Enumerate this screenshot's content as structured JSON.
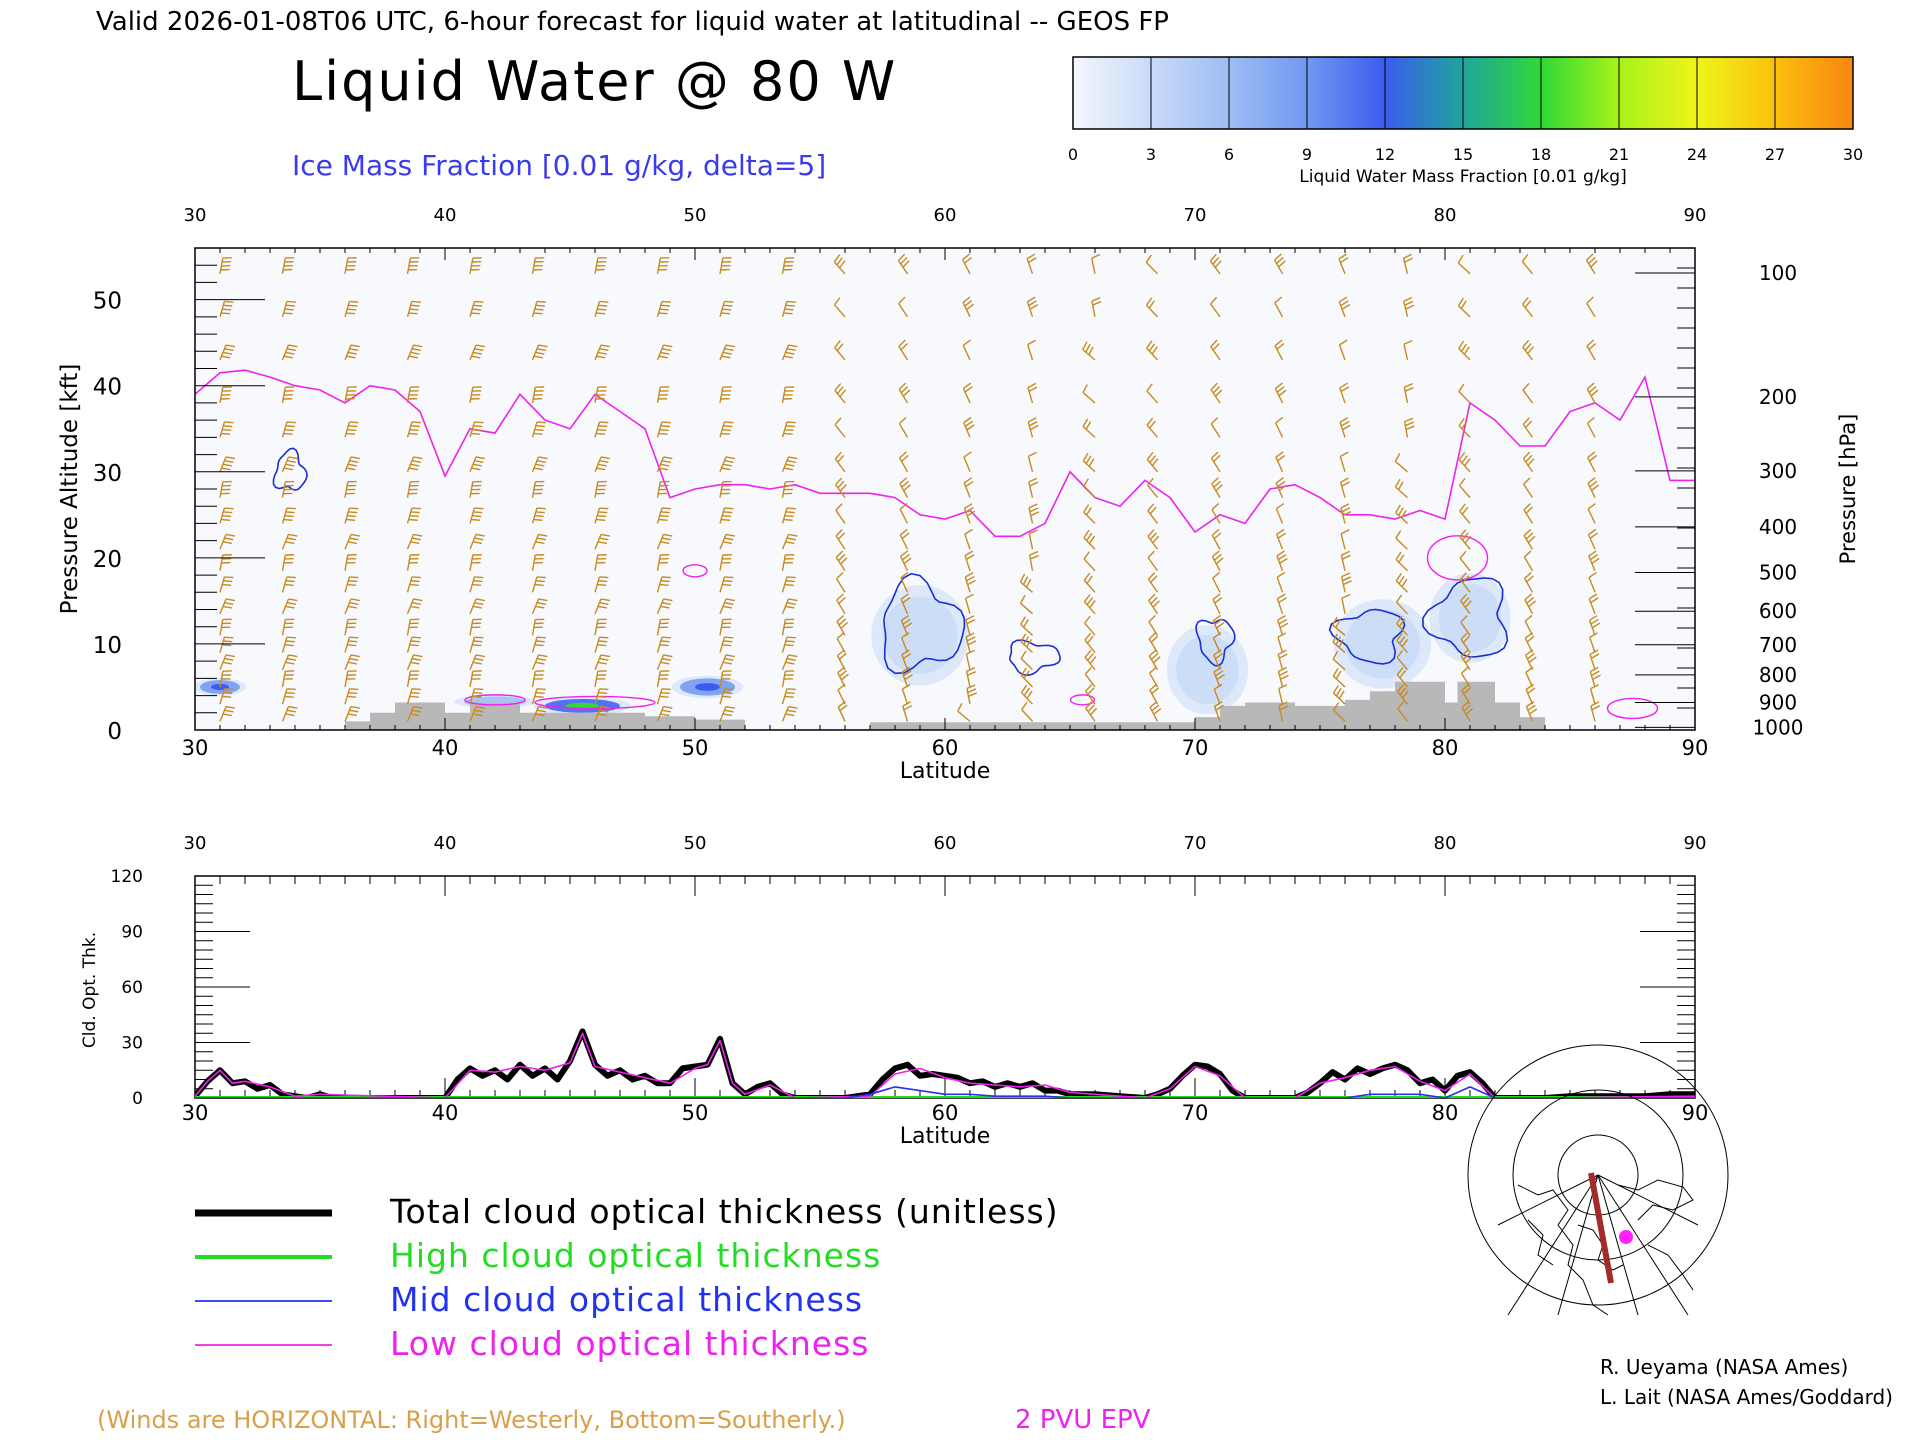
{
  "header": {
    "valid_line": "Valid 2026-01-08T06 UTC, 6-hour forecast for liquid water at latitudinal -- GEOS FP",
    "title": "Liquid Water @ 80 W",
    "subtitle": "Ice Mass Fraction [0.01 g/kg, delta=5]"
  },
  "colorbar": {
    "label": "Liquid Water Mass Fraction [0.01 g/kg]",
    "ticks": [
      "0",
      "3",
      "6",
      "9",
      "12",
      "15",
      "18",
      "21",
      "24",
      "27",
      "30"
    ],
    "colors": [
      "#f4f7fc",
      "#c9daf7",
      "#9ebdf4",
      "#7098f0",
      "#3b5ced",
      "#1fa59c",
      "#2fd838",
      "#a9f21a",
      "#eef51a",
      "#fbc00c",
      "#f78612"
    ],
    "end_color": "#f2280d"
  },
  "top_panel": {
    "xlabel": "Latitude",
    "ylabel_left": "Pressure Altitude [kft]",
    "ylabel_right": "Pressure [hPa]",
    "x_ticks": [
      "30",
      "40",
      "50",
      "60",
      "70",
      "80",
      "90"
    ],
    "y_left_ticks": [
      "0",
      "10",
      "20",
      "30",
      "40",
      "50"
    ],
    "y_right_ticks": [
      {
        "label": "100",
        "kft": 53.1
      },
      {
        "label": "200",
        "kft": 38.7
      },
      {
        "label": "300",
        "kft": 30.1
      },
      {
        "label": "400",
        "kft": 23.6
      },
      {
        "label": "500",
        "kft": 18.3
      },
      {
        "label": "600",
        "kft": 13.8
      },
      {
        "label": "700",
        "kft": 9.9
      },
      {
        "label": "800",
        "kft": 6.4
      },
      {
        "label": "900",
        "kft": 3.2
      },
      {
        "label": "1000",
        "kft": 0.3
      }
    ]
  },
  "bottom_panel": {
    "xlabel": "Latitude",
    "ylabel": "Cld. Opt. Thk.",
    "x_ticks": [
      "30",
      "40",
      "50",
      "60",
      "70",
      "80",
      "90"
    ],
    "y_ticks": [
      "0",
      "30",
      "60",
      "90",
      "120"
    ]
  },
  "legend": {
    "items": [
      {
        "label": "Total cloud optical thickness (unitless)",
        "color": "#000000"
      },
      {
        "label": "High cloud optical thickness",
        "color": "#22dd22"
      },
      {
        "label": "Mid cloud optical thickness",
        "color": "#2233ee"
      },
      {
        "label": "Low cloud optical thickness",
        "color": "#ee22ee"
      }
    ]
  },
  "footer": {
    "winds_note": "(Winds are HORIZONTAL: Right=Westerly, Bottom=Southerly.)",
    "epv_label": "2 PVU EPV",
    "credit_1": "R. Ueyama (NASA Ames)",
    "credit_2": "L. Lait (NASA Ames/Goddard)"
  },
  "colors": {
    "wind": "#c88a1e",
    "epv": "#ee22ee",
    "ice_contour": "#1a2fd0",
    "terrain": "#b8b8b8",
    "text": "#000000",
    "subtitle": "#3a3aee",
    "winds_note": "#d9a04a"
  },
  "chart_data": [
    {
      "type": "heatmap",
      "name": "Liquid Water @ 80 W cross-section",
      "x_range": [
        30,
        90
      ],
      "y_range_kft": [
        0,
        56
      ],
      "epv_2pvu_kft": [
        [
          30,
          39
        ],
        [
          31,
          41.5
        ],
        [
          32,
          41.8
        ],
        [
          33,
          41
        ],
        [
          34,
          40
        ],
        [
          35,
          39.5
        ],
        [
          36,
          38
        ],
        [
          37,
          40
        ],
        [
          38,
          39.5
        ],
        [
          39,
          37
        ],
        [
          40,
          29.5
        ],
        [
          41,
          35
        ],
        [
          42,
          34.5
        ],
        [
          43,
          39
        ],
        [
          44,
          36
        ],
        [
          45,
          35
        ],
        [
          46,
          39
        ],
        [
          47,
          37
        ],
        [
          48,
          35
        ],
        [
          49,
          27
        ],
        [
          50,
          28
        ],
        [
          51,
          28.5
        ],
        [
          52,
          28.5
        ],
        [
          53,
          28
        ],
        [
          54,
          28.5
        ],
        [
          55,
          27.5
        ],
        [
          56,
          27.5
        ],
        [
          57,
          27.5
        ],
        [
          58,
          27
        ],
        [
          59,
          25
        ],
        [
          60,
          24.5
        ],
        [
          61,
          25.5
        ],
        [
          62,
          22.5
        ],
        [
          63,
          22.5
        ],
        [
          64,
          24
        ],
        [
          65,
          30
        ],
        [
          66,
          27
        ],
        [
          67,
          26
        ],
        [
          68,
          29
        ],
        [
          69,
          27
        ],
        [
          70,
          23
        ],
        [
          71,
          25
        ],
        [
          72,
          24
        ],
        [
          73,
          28
        ],
        [
          74,
          28.5
        ],
        [
          75,
          27
        ],
        [
          76,
          25
        ],
        [
          77,
          25
        ],
        [
          78,
          24.5
        ],
        [
          79,
          25.5
        ],
        [
          80,
          24.5
        ],
        [
          81,
          38
        ],
        [
          82,
          36
        ],
        [
          83,
          33
        ],
        [
          84,
          33
        ],
        [
          85,
          37
        ],
        [
          86,
          38
        ],
        [
          87,
          36
        ],
        [
          88,
          41
        ],
        [
          89,
          29
        ],
        [
          90,
          29
        ]
      ],
      "ice_contours_kft": [
        {
          "lat": 33.8,
          "kft": 30,
          "w_deg": 1.2,
          "h_kft": 4.5
        },
        {
          "lat": 59.0,
          "kft": 12,
          "w_deg": 3.2,
          "h_kft": 10
        },
        {
          "lat": 63.5,
          "kft": 8.5,
          "w_deg": 2.0,
          "h_kft": 3.5
        },
        {
          "lat": 70.8,
          "kft": 10.5,
          "w_deg": 1.4,
          "h_kft": 5
        },
        {
          "lat": 77.0,
          "kft": 11,
          "w_deg": 2.6,
          "h_kft": 6
        },
        {
          "lat": 81.0,
          "kft": 13,
          "w_deg": 3.0,
          "h_kft": 9
        }
      ],
      "liquid_patches_kft": [
        {
          "lat": 31.0,
          "kft": 5,
          "w_deg": 1.6,
          "h_kft": 1.6,
          "value": 12
        },
        {
          "lat": 42.0,
          "kft": 3.3,
          "w_deg": 2.5,
          "h_kft": 1.2,
          "value": 9
        },
        {
          "lat": 45.5,
          "kft": 2.8,
          "w_deg": 3.0,
          "h_kft": 1.6,
          "value": 17
        },
        {
          "lat": 50.5,
          "kft": 5.0,
          "w_deg": 2.2,
          "h_kft": 2.0,
          "value": 13
        },
        {
          "lat": 59.0,
          "kft": 11,
          "w_deg": 3.0,
          "h_kft": 9,
          "value": 4
        },
        {
          "lat": 70.5,
          "kft": 7,
          "w_deg": 2.5,
          "h_kft": 8,
          "value": 3
        },
        {
          "lat": 77.5,
          "kft": 10,
          "w_deg": 3.0,
          "h_kft": 8,
          "value": 3
        },
        {
          "lat": 81.0,
          "kft": 13,
          "w_deg": 2.5,
          "h_kft": 8,
          "value": 3
        }
      ],
      "terrain_kft": [
        [
          30,
          0
        ],
        [
          36,
          0
        ],
        [
          36,
          1
        ],
        [
          37,
          1
        ],
        [
          37,
          2
        ],
        [
          38,
          2
        ],
        [
          38,
          3.2
        ],
        [
          40,
          3.2
        ],
        [
          40,
          2
        ],
        [
          41,
          2
        ],
        [
          41,
          3.2
        ],
        [
          43,
          3.2
        ],
        [
          43,
          2
        ],
        [
          48,
          2
        ],
        [
          48,
          1.6
        ],
        [
          50,
          1.6
        ],
        [
          50,
          1.2
        ],
        [
          52,
          1.2
        ],
        [
          52,
          0
        ],
        [
          57,
          0
        ],
        [
          57,
          0.9
        ],
        [
          70,
          0.9
        ],
        [
          70,
          1.5
        ],
        [
          71,
          1.5
        ],
        [
          71,
          2.8
        ],
        [
          72,
          2.8
        ],
        [
          72,
          3.2
        ],
        [
          74,
          3.2
        ],
        [
          74,
          2.8
        ],
        [
          76,
          2.8
        ],
        [
          76,
          3.5
        ],
        [
          77,
          3.5
        ],
        [
          77,
          4.5
        ],
        [
          78,
          4.5
        ],
        [
          78,
          5.6
        ],
        [
          80,
          5.6
        ],
        [
          80,
          3.2
        ],
        [
          80.5,
          3.2
        ],
        [
          80.5,
          5.6
        ],
        [
          82,
          5.6
        ],
        [
          82,
          3.2
        ],
        [
          83,
          3.2
        ],
        [
          83,
          1.5
        ],
        [
          84,
          1.5
        ],
        [
          84,
          0
        ],
        [
          90,
          0
        ]
      ]
    },
    {
      "type": "line",
      "name": "Cloud optical thickness",
      "x_range": [
        30,
        90
      ],
      "ylim": [
        0,
        120
      ],
      "series": [
        {
          "name": "Total cloud optical thickness (unitless)",
          "x": [
            30,
            30.5,
            31,
            31.5,
            32,
            32.5,
            33,
            33.5,
            34,
            34.5,
            35,
            35.5,
            36,
            37,
            38,
            39,
            40,
            40.5,
            41,
            41.5,
            42,
            42.5,
            43,
            43.5,
            44,
            44.5,
            45,
            45.5,
            46,
            46.5,
            47,
            47.5,
            48,
            48.5,
            49,
            49.5,
            50,
            50.5,
            51,
            51.5,
            52,
            52.5,
            53,
            53.5,
            54,
            55,
            56,
            57,
            57.5,
            58,
            58.5,
            59,
            59.5,
            60,
            60.5,
            61,
            61.5,
            62,
            62.5,
            63,
            63.5,
            64,
            64.5,
            65,
            66,
            67,
            68,
            68.5,
            69,
            69.5,
            70,
            70.5,
            71,
            71.5,
            72,
            73,
            74,
            74.5,
            75,
            75.5,
            76,
            76.5,
            77,
            77.5,
            78,
            78.5,
            79,
            79.5,
            80,
            80.5,
            81,
            81.5,
            82,
            83,
            84,
            85,
            86,
            87,
            88,
            89,
            90
          ],
          "values": [
            1,
            9,
            15,
            8,
            9,
            5,
            7,
            2,
            1,
            0,
            2,
            0,
            0,
            0,
            0,
            0,
            0,
            10,
            16,
            12,
            15,
            10,
            18,
            12,
            16,
            10,
            20,
            36,
            18,
            12,
            15,
            10,
            12,
            8,
            8,
            16,
            17,
            18,
            32,
            8,
            2,
            6,
            8,
            2,
            0,
            0,
            0,
            2,
            10,
            16,
            18,
            12,
            13,
            12,
            11,
            8,
            9,
            6,
            8,
            6,
            8,
            4,
            4,
            2,
            2,
            1,
            0,
            2,
            5,
            12,
            18,
            17,
            13,
            4,
            0,
            0,
            0,
            3,
            8,
            14,
            10,
            16,
            13,
            16,
            18,
            15,
            8,
            10,
            4,
            12,
            14,
            8,
            0,
            0,
            0,
            1,
            1,
            1,
            1,
            2,
            2
          ]
        },
        {
          "name": "High cloud optical thickness",
          "x": [
            30,
            90
          ],
          "values": [
            0,
            0
          ]
        },
        {
          "name": "Mid cloud optical thickness",
          "x": [
            30,
            56,
            57,
            58,
            59,
            60,
            61,
            62,
            63,
            64,
            65,
            66,
            70,
            76,
            77,
            78,
            79,
            80,
            81,
            82,
            90
          ],
          "values": [
            0,
            0,
            2,
            6,
            4,
            2,
            2,
            1,
            1,
            1,
            0,
            0,
            0,
            0,
            2,
            2,
            2,
            0,
            6,
            0,
            0
          ]
        },
        {
          "name": "Low cloud optical thickness",
          "x": [
            30,
            30.5,
            31,
            31.5,
            32,
            33,
            34,
            35,
            40,
            41,
            42,
            43,
            44,
            45,
            45.5,
            46,
            47,
            48,
            49,
            50,
            50.5,
            51,
            51.5,
            52,
            53,
            54,
            57,
            58,
            59,
            60,
            61,
            62,
            63,
            64,
            65,
            66,
            68,
            69,
            70,
            71,
            72,
            74,
            75,
            76,
            77,
            78,
            79,
            80,
            81,
            82,
            84,
            90
          ],
          "values": [
            1,
            9,
            15,
            8,
            9,
            6,
            1,
            2,
            0,
            15,
            14,
            17,
            15,
            19,
            35,
            17,
            14,
            11,
            8,
            16,
            18,
            31,
            8,
            2,
            7,
            0,
            1,
            13,
            16,
            11,
            8,
            7,
            6,
            7,
            3,
            2,
            0,
            5,
            17,
            12,
            0,
            0,
            8,
            11,
            15,
            17,
            9,
            4,
            13,
            0,
            0,
            1
          ]
        }
      ]
    }
  ]
}
